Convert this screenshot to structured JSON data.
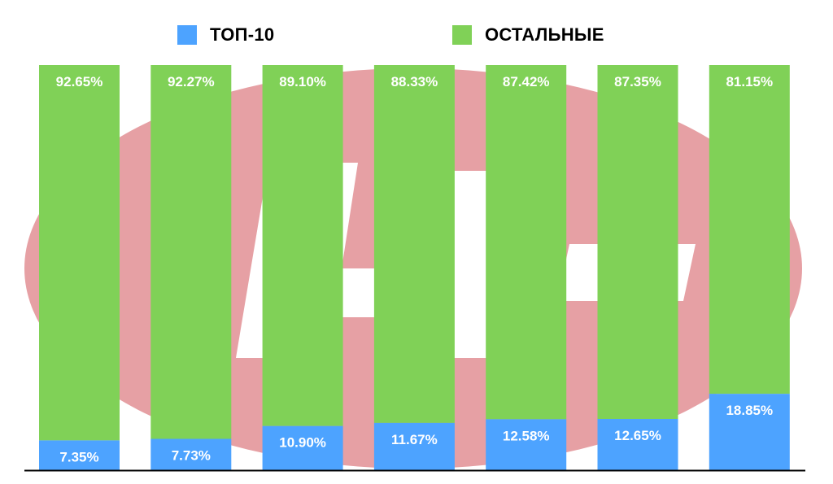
{
  "colors": {
    "top10": "#4da3ff",
    "others": "#80d157",
    "watermark": "#e6a0a4",
    "axis": "#000000",
    "label_text": "#ffffff"
  },
  "legend": {
    "top10_label": "ТОП-10",
    "others_label": "ОСТАЛЬНЫЕ"
  },
  "chart_data": {
    "type": "bar",
    "stacked": true,
    "normalized_percent": true,
    "categories": [
      "",
      "",
      "",
      "",
      "",
      "",
      ""
    ],
    "series": [
      {
        "name": "ТОП-10",
        "values": [
          7.35,
          7.73,
          10.9,
          11.67,
          12.58,
          12.65,
          18.85
        ],
        "labels": [
          "7.35%",
          "7.73%",
          "10.90%",
          "11.67%",
          "12.58%",
          "12.65%",
          "18.85%"
        ]
      },
      {
        "name": "ОСТАЛЬНЫЕ",
        "values": [
          92.65,
          92.27,
          89.1,
          88.33,
          87.42,
          87.35,
          81.15
        ],
        "labels": [
          "92.65%",
          "92.27%",
          "89.10%",
          "88.33%",
          "87.42%",
          "87.35%",
          "81.15%"
        ]
      }
    ],
    "ylim": [
      0,
      100
    ],
    "title": "",
    "xlabel": "",
    "ylabel": "",
    "grid": false,
    "legend_position": "top"
  }
}
